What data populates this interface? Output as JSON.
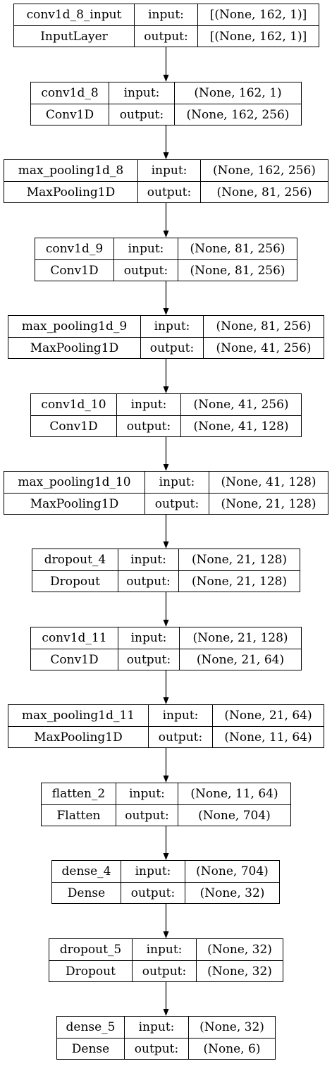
{
  "layers": [
    {
      "name": "conv1d_8_input",
      "type": "InputLayer",
      "input_label": "input:",
      "output_label": "output:",
      "input_shape": "[(None, 162, 1)]",
      "output_shape": "[(None, 162, 1)]"
    },
    {
      "name": "conv1d_8",
      "type": "Conv1D",
      "input_label": "input:",
      "output_label": "output:",
      "input_shape": "(None, 162, 1)",
      "output_shape": "(None, 162, 256)"
    },
    {
      "name": "max_pooling1d_8",
      "type": "MaxPooling1D",
      "input_label": "input:",
      "output_label": "output:",
      "input_shape": "(None, 162, 256)",
      "output_shape": "(None, 81, 256)"
    },
    {
      "name": "conv1d_9",
      "type": "Conv1D",
      "input_label": "input:",
      "output_label": "output:",
      "input_shape": "(None, 81, 256)",
      "output_shape": "(None, 81, 256)"
    },
    {
      "name": "max_pooling1d_9",
      "type": "MaxPooling1D",
      "input_label": "input:",
      "output_label": "output:",
      "input_shape": "(None, 81, 256)",
      "output_shape": "(None, 41, 256)"
    },
    {
      "name": "conv1d_10",
      "type": "Conv1D",
      "input_label": "input:",
      "output_label": "output:",
      "input_shape": "(None, 41, 256)",
      "output_shape": "(None, 41, 128)"
    },
    {
      "name": "max_pooling1d_10",
      "type": "MaxPooling1D",
      "input_label": "input:",
      "output_label": "output:",
      "input_shape": "(None, 41, 128)",
      "output_shape": "(None, 21, 128)"
    },
    {
      "name": "dropout_4",
      "type": "Dropout",
      "input_label": "input:",
      "output_label": "output:",
      "input_shape": "(None, 21, 128)",
      "output_shape": "(None, 21, 128)"
    },
    {
      "name": "conv1d_11",
      "type": "Conv1D",
      "input_label": "input:",
      "output_label": "output:",
      "input_shape": "(None, 21, 128)",
      "output_shape": "(None, 21, 64)"
    },
    {
      "name": "max_pooling1d_11",
      "type": "MaxPooling1D",
      "input_label": "input:",
      "output_label": "output:",
      "input_shape": "(None, 21, 64)",
      "output_shape": "(None, 11, 64)"
    },
    {
      "name": "flatten_2",
      "type": "Flatten",
      "input_label": "input:",
      "output_label": "output:",
      "input_shape": "(None, 11, 64)",
      "output_shape": "(None, 704)"
    },
    {
      "name": "dense_4",
      "type": "Dense",
      "input_label": "input:",
      "output_label": "output:",
      "input_shape": "(None, 704)",
      "output_shape": "(None, 32)"
    },
    {
      "name": "dropout_5",
      "type": "Dropout",
      "input_label": "input:",
      "output_label": "output:",
      "input_shape": "(None, 32)",
      "output_shape": "(None, 32)"
    },
    {
      "name": "dense_5",
      "type": "Dense",
      "input_label": "input:",
      "output_label": "output:",
      "input_shape": "(None, 32)",
      "output_shape": "(None, 6)"
    }
  ],
  "colors": {
    "stroke": "#000000",
    "fill": "#ffffff",
    "text": "#000000"
  }
}
